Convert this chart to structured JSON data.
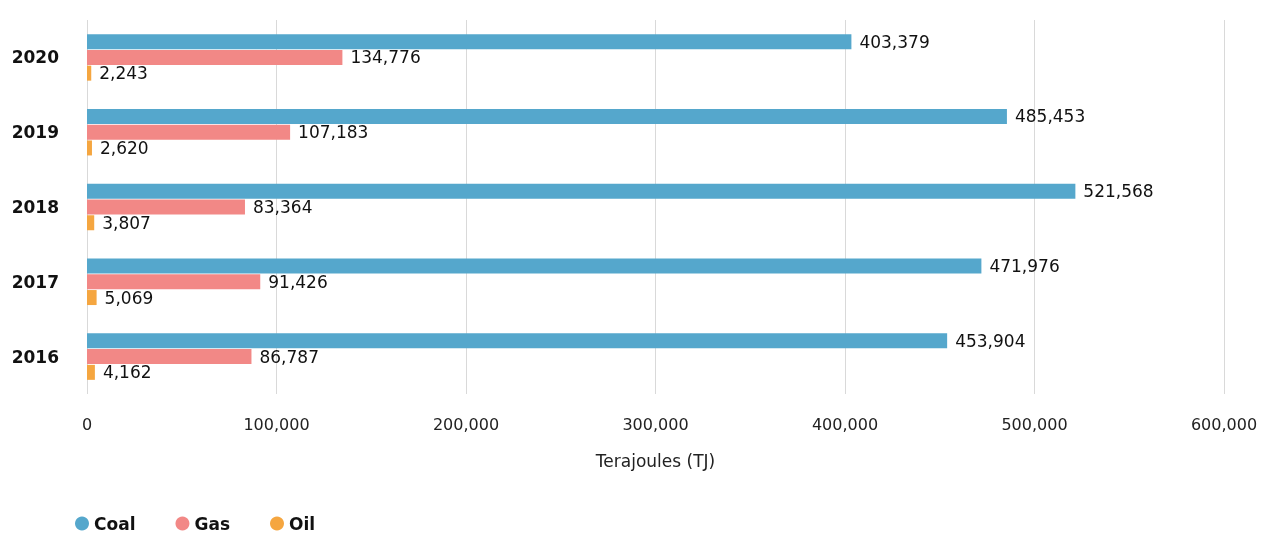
{
  "chart_data": {
    "type": "bar",
    "orientation": "horizontal",
    "xlabel": "Terajoules (TJ)",
    "categories": [
      "2020",
      "2019",
      "2018",
      "2017",
      "2016"
    ],
    "series": [
      {
        "name": "Coal",
        "color": "#55a7cc",
        "values": [
          403379,
          485453,
          521568,
          471976,
          453904
        ],
        "value_labels": [
          "403,379",
          "485,453",
          "521,568",
          "471,976",
          "453,904"
        ]
      },
      {
        "name": "Gas",
        "color": "#f28886",
        "values": [
          134776,
          107183,
          83364,
          91426,
          86787
        ],
        "value_labels": [
          "134,776",
          "107,183",
          "83,364",
          "91,426",
          "86,787"
        ]
      },
      {
        "name": "Oil",
        "color": "#f5a640",
        "values": [
          2243,
          2620,
          3807,
          5069,
          4162
        ],
        "value_labels": [
          "2,243",
          "2,620",
          "3,807",
          "5,069",
          "4,162"
        ]
      }
    ],
    "xlim": [
      0,
      600000
    ],
    "xticks": [
      0,
      {
        "value": 100000,
        "label": "100,000"
      },
      {
        "value": 200000,
        "label": "200,000"
      },
      {
        "value": 300000,
        "label": "300,000"
      },
      {
        "value": 400000,
        "label": "400,000"
      },
      {
        "value": 500000,
        "label": "500,000"
      },
      {
        "value": 600000,
        "label": "600,000"
      }
    ],
    "grid": "x",
    "legend": "bottom left"
  }
}
